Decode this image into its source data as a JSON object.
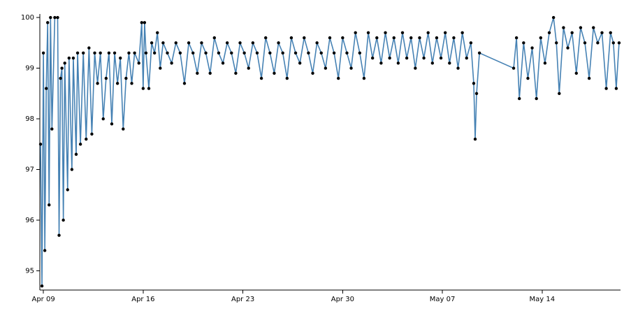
{
  "chart_data": {
    "type": "line",
    "x": [
      8.8,
      8.9,
      9.0,
      9.1,
      9.2,
      9.3,
      9.4,
      9.5,
      9.6,
      9.8,
      10.0,
      10.1,
      10.2,
      10.3,
      10.4,
      10.5,
      10.7,
      10.8,
      11.0,
      11.1,
      11.3,
      11.4,
      11.6,
      11.8,
      12.0,
      12.2,
      12.4,
      12.6,
      12.8,
      13.0,
      13.2,
      13.4,
      13.6,
      13.8,
      14.0,
      14.2,
      14.4,
      14.6,
      14.8,
      15.0,
      15.2,
      15.4,
      15.7,
      15.9,
      16.0,
      16.1,
      16.2,
      16.4,
      16.6,
      16.8,
      17.0,
      17.2,
      17.4,
      17.7,
      18.0,
      18.3,
      18.6,
      18.9,
      19.2,
      19.5,
      19.8,
      20.1,
      20.4,
      20.7,
      21.0,
      21.3,
      21.6,
      21.9,
      22.2,
      22.5,
      22.8,
      23.1,
      23.4,
      23.7,
      24.0,
      24.3,
      24.6,
      24.9,
      25.2,
      25.5,
      25.8,
      26.1,
      26.4,
      26.7,
      27.0,
      27.3,
      27.6,
      27.9,
      28.2,
      28.5,
      28.8,
      29.1,
      29.4,
      29.7,
      30.0,
      30.3,
      30.6,
      30.9,
      31.2,
      31.5,
      31.8,
      32.1,
      32.4,
      32.7,
      33.0,
      33.3,
      33.6,
      33.9,
      34.2,
      34.5,
      34.8,
      35.1,
      35.4,
      35.7,
      36.0,
      36.3,
      36.6,
      36.9,
      37.2,
      37.5,
      37.8,
      38.1,
      38.4,
      38.7,
      39.0,
      39.2,
      39.3,
      39.4,
      39.6,
      42.0,
      42.2,
      42.4,
      42.7,
      43.0,
      43.3,
      43.6,
      43.9,
      44.2,
      44.5,
      44.8,
      45.0,
      45.2,
      45.5,
      45.8,
      46.1,
      46.4,
      46.7,
      47.0,
      47.3,
      47.6,
      47.9,
      48.2,
      48.5,
      48.8,
      49.0,
      49.2,
      49.4
    ],
    "values": [
      97.5,
      94.7,
      99.3,
      95.4,
      98.6,
      99.9,
      96.3,
      100,
      97.8,
      100,
      100,
      95.7,
      98.8,
      99.0,
      96.0,
      99.1,
      96.6,
      99.2,
      97.0,
      99.2,
      97.3,
      99.3,
      97.5,
      99.3,
      97.6,
      99.4,
      97.7,
      99.3,
      98.7,
      99.3,
      98.0,
      98.8,
      99.3,
      97.9,
      99.3,
      98.7,
      99.2,
      97.8,
      98.8,
      99.3,
      98.7,
      99.3,
      99.1,
      99.9,
      98.6,
      99.9,
      99.3,
      98.6,
      99.5,
      99.3,
      99.7,
      99.0,
      99.5,
      99.3,
      99.1,
      99.5,
      99.3,
      98.7,
      99.5,
      99.3,
      98.9,
      99.5,
      99.3,
      98.9,
      99.6,
      99.3,
      99.1,
      99.5,
      99.3,
      98.9,
      99.5,
      99.3,
      99.0,
      99.5,
      99.3,
      98.8,
      99.6,
      99.3,
      98.9,
      99.5,
      99.3,
      98.8,
      99.6,
      99.3,
      99.1,
      99.6,
      99.3,
      98.9,
      99.5,
      99.3,
      99.0,
      99.6,
      99.3,
      98.8,
      99.6,
      99.3,
      99.0,
      99.7,
      99.3,
      98.8,
      99.7,
      99.2,
      99.6,
      99.1,
      99.7,
      99.2,
      99.6,
      99.1,
      99.7,
      99.2,
      99.6,
      99.0,
      99.6,
      99.2,
      99.7,
      99.1,
      99.6,
      99.2,
      99.7,
      99.1,
      99.6,
      99.0,
      99.7,
      99.2,
      99.5,
      98.7,
      97.6,
      98.5,
      99.3,
      99.0,
      99.6,
      98.4,
      99.5,
      98.8,
      99.4,
      98.4,
      99.6,
      99.1,
      99.7,
      100,
      99.5,
      98.5,
      99.8,
      99.4,
      99.7,
      98.9,
      99.8,
      99.5,
      98.8,
      99.8,
      99.5,
      99.7,
      98.6,
      99.7,
      99.5,
      98.6,
      99.5
    ],
    "color": "#4682b4",
    "marker_color": "#000000",
    "xlim": [
      8.75,
      49.5
    ],
    "xticks": [
      {
        "value": 9,
        "label": "Apr 09"
      },
      {
        "value": 16,
        "label": "Apr 16"
      },
      {
        "value": 23,
        "label": "Apr 23"
      },
      {
        "value": 30,
        "label": "Apr 30"
      },
      {
        "value": 37,
        "label": "May 07"
      },
      {
        "value": 44,
        "label": "May 14"
      }
    ],
    "ylim": [
      94.62,
      100.07
    ],
    "yticks": [
      95,
      96,
      97,
      98,
      99,
      100
    ],
    "grid": false
  }
}
